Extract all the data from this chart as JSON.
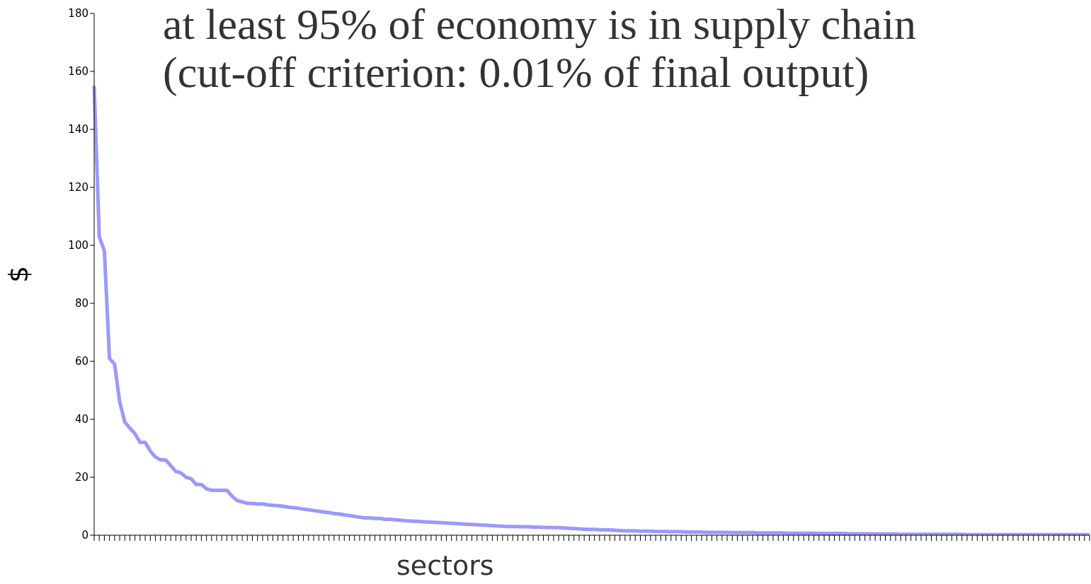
{
  "chart_data": {
    "type": "line",
    "title": "at least 95% of economy is in supply chain",
    "subtitle": "(cut-off criterion: 0.01% of final output)",
    "xlabel": "sectors",
    "ylabel": "$",
    "ylim": [
      0,
      180
    ],
    "yticks": [
      0,
      20,
      40,
      60,
      80,
      100,
      120,
      140,
      160,
      180
    ],
    "tick_labels": "y",
    "categories": [
      null,
      null,
      null,
      null,
      null,
      null,
      null,
      null,
      null,
      null,
      null,
      null,
      null,
      null,
      null,
      null,
      null,
      null,
      null,
      null,
      null,
      null,
      null,
      null,
      null,
      null,
      null,
      null,
      null,
      null,
      null,
      null,
      null,
      null,
      null,
      null,
      null,
      null,
      null,
      null,
      null,
      null,
      null,
      null,
      null,
      null,
      null,
      null,
      null,
      null,
      null,
      null,
      null,
      null,
      null,
      null,
      null,
      null,
      null,
      null,
      null,
      null,
      null,
      null,
      null,
      null,
      null,
      null,
      null,
      null,
      null,
      null,
      null,
      null,
      null,
      null,
      null,
      null,
      null,
      null,
      null,
      null,
      null,
      null,
      null,
      null,
      null,
      null,
      null,
      null,
      null,
      null,
      null,
      null,
      null,
      null,
      null,
      null,
      null,
      null,
      null,
      null,
      null,
      null,
      null,
      null,
      null,
      null,
      null,
      null,
      null,
      null,
      null,
      null,
      null,
      null,
      null,
      null,
      null,
      null,
      null,
      null,
      null,
      null,
      null,
      null,
      null,
      null,
      null,
      null,
      null,
      null,
      null,
      null,
      null,
      null,
      null,
      null,
      null,
      null,
      null,
      null,
      null,
      null,
      null,
      null,
      null,
      null,
      null,
      null,
      null,
      null,
      null,
      null,
      null,
      null,
      null,
      null,
      null,
      null,
      null,
      null,
      null,
      null,
      null,
      null,
      null,
      null,
      null,
      null,
      null,
      null,
      null,
      null,
      null,
      null,
      null,
      null,
      null,
      null,
      null,
      null,
      null,
      null,
      null,
      null,
      null,
      null,
      null,
      null,
      null,
      null,
      null,
      null,
      null,
      null
    ],
    "series": [
      {
        "color": "#9999ff",
        "values": [
          155,
          103,
          98,
          61,
          59,
          46,
          39,
          37,
          35,
          32,
          32,
          29,
          27,
          26,
          26,
          24,
          22,
          21.5,
          20,
          19.5,
          17.5,
          17.5,
          16,
          15.5,
          15.5,
          15.5,
          15.5,
          13.5,
          12,
          11.5,
          11,
          11,
          10.8,
          10.8,
          10.5,
          10.3,
          10.2,
          10,
          9.7,
          9.5,
          9.3,
          9,
          8.8,
          8.5,
          8.3,
          8,
          7.8,
          7.5,
          7.3,
          7,
          6.8,
          6.5,
          6.2,
          6,
          6,
          5.8,
          5.8,
          5.5,
          5.5,
          5.3,
          5.2,
          5,
          4.9,
          4.8,
          4.7,
          4.6,
          4.5,
          4.4,
          4.3,
          4.2,
          4.1,
          4,
          3.9,
          3.8,
          3.7,
          3.6,
          3.5,
          3.4,
          3.3,
          3.2,
          3.1,
          3,
          3,
          3,
          2.9,
          2.9,
          2.8,
          2.8,
          2.7,
          2.7,
          2.6,
          2.6,
          2.5,
          2.4,
          2.3,
          2.2,
          2.1,
          2,
          2,
          1.9,
          1.8,
          1.8,
          1.7,
          1.6,
          1.5,
          1.5,
          1.5,
          1.4,
          1.4,
          1.4,
          1.3,
          1.3,
          1.3,
          1.2,
          1.2,
          1.2,
          1.1,
          1.1,
          1.1,
          1.1,
          1,
          1,
          1,
          1,
          1,
          0.9,
          0.9,
          0.9,
          0.9,
          0.9,
          0.8,
          0.8,
          0.8,
          0.8,
          0.8,
          0.8,
          0.7,
          0.7,
          0.7,
          0.7,
          0.7,
          0.7,
          0.6,
          0.6,
          0.6,
          0.6,
          0.6,
          0.6,
          0.5,
          0.5,
          0.5,
          0.5,
          0.5,
          0.4,
          0.4,
          0.4,
          0.4,
          0.4,
          0.3,
          0.3,
          0.3,
          0.3,
          0.3,
          0.3,
          0.3,
          0.3,
          0.3,
          0.3,
          0.3,
          0.3,
          0.3,
          0.2,
          0.2,
          0.2,
          0.2,
          0.2,
          0.2,
          0.2,
          0.2,
          0.2,
          0.2,
          0.2,
          0.2,
          0.2,
          0.2,
          0.2,
          0.2,
          0.2,
          0.2,
          0.2,
          0.2,
          0.2,
          0.2,
          0.2,
          0.2,
          0.2
        ]
      }
    ]
  }
}
